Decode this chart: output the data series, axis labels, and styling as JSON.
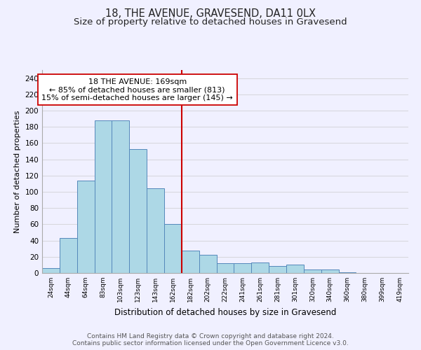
{
  "title": "18, THE AVENUE, GRAVESEND, DA11 0LX",
  "subtitle": "Size of property relative to detached houses in Gravesend",
  "xlabel": "Distribution of detached houses by size in Gravesend",
  "ylabel": "Number of detached properties",
  "bar_labels": [
    "24sqm",
    "44sqm",
    "64sqm",
    "83sqm",
    "103sqm",
    "123sqm",
    "143sqm",
    "162sqm",
    "182sqm",
    "202sqm",
    "222sqm",
    "241sqm",
    "261sqm",
    "281sqm",
    "301sqm",
    "320sqm",
    "340sqm",
    "360sqm",
    "380sqm",
    "399sqm",
    "419sqm"
  ],
  "bar_values": [
    6,
    43,
    114,
    188,
    188,
    153,
    104,
    60,
    28,
    22,
    12,
    12,
    13,
    9,
    10,
    4,
    4,
    1,
    0,
    0,
    0
  ],
  "bar_color": "#add8e6",
  "bar_edge_color": "#5588bb",
  "ylim": [
    0,
    250
  ],
  "yticks": [
    0,
    20,
    40,
    60,
    80,
    100,
    120,
    140,
    160,
    180,
    200,
    220,
    240
  ],
  "vline_x_index": 7.5,
  "vline_color": "#cc0000",
  "annotation_text": "18 THE AVENUE: 169sqm\n← 85% of detached houses are smaller (813)\n15% of semi-detached houses are larger (145) →",
  "annotation_box_color": "#ffffff",
  "annotation_box_edge_color": "#cc0000",
  "footer_line1": "Contains HM Land Registry data © Crown copyright and database right 2024.",
  "footer_line2": "Contains public sector information licensed under the Open Government Licence v3.0.",
  "bg_color": "#f0f0ff",
  "title_fontsize": 10.5,
  "subtitle_fontsize": 9.5,
  "annotation_fontsize": 8,
  "footer_fontsize": 6.5
}
